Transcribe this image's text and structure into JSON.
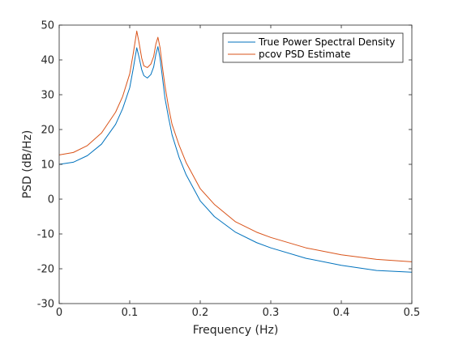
{
  "chart_data": {
    "type": "line",
    "title": "",
    "xlabel": "Frequency (Hz)",
    "ylabel": "PSD (dB/Hz)",
    "xlim": [
      0,
      0.5
    ],
    "ylim": [
      -30,
      50
    ],
    "xticks": [
      0,
      0.1,
      0.2,
      0.3,
      0.4,
      0.5
    ],
    "xtick_labels": [
      "0",
      "0.1",
      "0.2",
      "0.3",
      "0.4",
      "0.5"
    ],
    "yticks": [
      -30,
      -20,
      -10,
      0,
      10,
      20,
      30,
      40,
      50
    ],
    "ytick_labels": [
      "-30",
      "-20",
      "-10",
      "0",
      "10",
      "20",
      "30",
      "40",
      "50"
    ],
    "grid": false,
    "legend_position": "top-right",
    "series": [
      {
        "name": "True Power Spectral Density",
        "color": "#0072bd",
        "x": [
          0,
          0.02,
          0.04,
          0.06,
          0.08,
          0.09,
          0.1,
          0.105,
          0.11,
          0.113,
          0.117,
          0.12,
          0.125,
          0.13,
          0.134,
          0.137,
          0.14,
          0.143,
          0.147,
          0.15,
          0.155,
          0.16,
          0.17,
          0.18,
          0.2,
          0.22,
          0.25,
          0.28,
          0.3,
          0.35,
          0.4,
          0.45,
          0.5
        ],
        "y": [
          10,
          10.6,
          12.5,
          15.8,
          21.5,
          26,
          32,
          37.5,
          43.5,
          41,
          37.2,
          35.5,
          34.8,
          35.8,
          38,
          41.5,
          43.8,
          40.5,
          34,
          29,
          23.5,
          18.5,
          12,
          7,
          -0.5,
          -5,
          -9.5,
          -12.5,
          -14,
          -17,
          -19,
          -20.5,
          -21
        ]
      },
      {
        "name": "pcov PSD Estimate",
        "color": "#d95319",
        "x": [
          0,
          0.02,
          0.04,
          0.06,
          0.08,
          0.09,
          0.1,
          0.105,
          0.11,
          0.113,
          0.117,
          0.12,
          0.125,
          0.13,
          0.134,
          0.137,
          0.14,
          0.143,
          0.147,
          0.15,
          0.155,
          0.16,
          0.17,
          0.18,
          0.2,
          0.22,
          0.25,
          0.28,
          0.3,
          0.35,
          0.4,
          0.45,
          0.5
        ],
        "y": [
          12.7,
          13.4,
          15.4,
          19,
          25,
          29.5,
          36,
          41.8,
          48.3,
          45.2,
          40.5,
          38.3,
          37.8,
          38.8,
          41,
          44.5,
          46.5,
          43.5,
          37,
          32.5,
          26.5,
          21.5,
          15.5,
          10.5,
          3,
          -1.5,
          -6.5,
          -9.5,
          -11,
          -14,
          -16,
          -17.3,
          -18
        ]
      }
    ]
  }
}
